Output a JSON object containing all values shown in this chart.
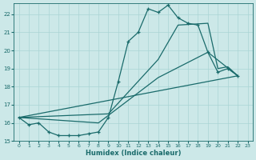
{
  "xlabel": "Humidex (Indice chaleur)",
  "background_color": "#cce8e8",
  "grid_color": "#aad4d4",
  "line_color": "#1a6b6b",
  "xlim": [
    -0.5,
    23.5
  ],
  "ylim": [
    15.0,
    22.6
  ],
  "yticks": [
    15,
    16,
    17,
    18,
    19,
    20,
    21,
    22
  ],
  "xticks": [
    0,
    1,
    2,
    3,
    4,
    5,
    6,
    7,
    8,
    9,
    10,
    11,
    12,
    13,
    14,
    15,
    16,
    17,
    18,
    19,
    20,
    21,
    22,
    23
  ],
  "series_marked": {
    "x": [
      0,
      1,
      2,
      3,
      4,
      5,
      6,
      7,
      8,
      9,
      10,
      11,
      12,
      13,
      14,
      15,
      16,
      17,
      18,
      19,
      20,
      21,
      22
    ],
    "y": [
      16.3,
      15.9,
      16.0,
      15.5,
      15.3,
      15.3,
      15.3,
      15.4,
      15.5,
      16.3,
      18.3,
      20.5,
      21.0,
      22.3,
      22.1,
      22.5,
      21.8,
      21.5,
      21.4,
      19.9,
      18.8,
      19.0,
      18.6
    ]
  },
  "series_upper": {
    "x": [
      0,
      9,
      14,
      16,
      19,
      20,
      21,
      22
    ],
    "y": [
      16.3,
      16.5,
      19.5,
      21.4,
      21.5,
      19.0,
      19.1,
      18.6
    ]
  },
  "series_mid": {
    "x": [
      0,
      8,
      14,
      19,
      22
    ],
    "y": [
      16.3,
      16.0,
      18.5,
      19.9,
      18.6
    ]
  },
  "series_low": {
    "x": [
      0,
      22
    ],
    "y": [
      16.3,
      18.6
    ]
  }
}
